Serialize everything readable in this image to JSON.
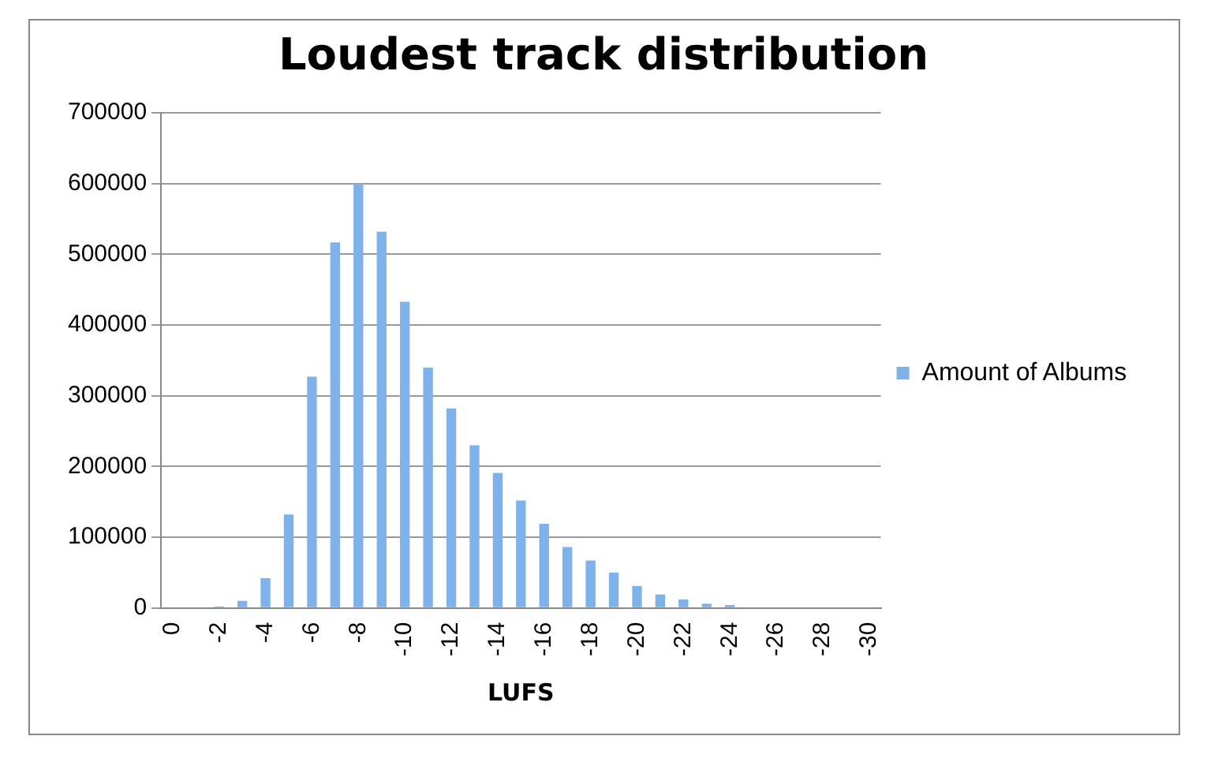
{
  "chart_data": {
    "type": "bar",
    "title": "Loudest track distribution",
    "xlabel": "LUFS",
    "categories": [
      "0",
      null,
      "-2",
      null,
      "-4",
      null,
      "-6",
      null,
      "-8",
      null,
      "-10",
      null,
      "-12",
      null,
      "-14",
      null,
      "-16",
      null,
      "-18",
      null,
      "-20",
      null,
      "-22",
      null,
      "-24",
      null,
      "-26",
      null,
      "-28",
      null,
      "-30"
    ],
    "series": [
      {
        "name": "Amount of Albums",
        "color": "#7fb2ea",
        "values": [
          0,
          0,
          2000,
          10000,
          42000,
          132000,
          327000,
          517000,
          600000,
          532000,
          433000,
          340000,
          282000,
          230000,
          191000,
          152000,
          119000,
          86000,
          67000,
          50000,
          31000,
          19000,
          12000,
          6000,
          4000,
          1000,
          0,
          0,
          0,
          0,
          0
        ]
      }
    ],
    "ylim": [
      0,
      700000
    ],
    "yticks": [
      0,
      100000,
      200000,
      300000,
      400000,
      500000,
      600000,
      700000
    ],
    "grid": "y",
    "legend": "right"
  }
}
